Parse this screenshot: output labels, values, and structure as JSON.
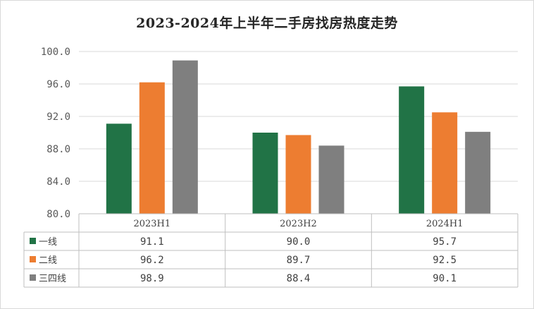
{
  "chart_data": {
    "type": "bar",
    "title": "2023-2024年上半年二手房找房热度走势",
    "categories": [
      "2023H1",
      "2023H2",
      "2024H1"
    ],
    "series": [
      {
        "name": "一线",
        "color": "#217346",
        "values": [
          91.1,
          90.0,
          95.7
        ],
        "labels": [
          "91.1",
          "90.0",
          "95.7"
        ]
      },
      {
        "name": "二线",
        "color": "#ed7d31",
        "values": [
          96.2,
          89.7,
          92.5
        ],
        "labels": [
          "96.2",
          "89.7",
          "92.5"
        ]
      },
      {
        "name": "三四线",
        "color": "#7f7f7f",
        "values": [
          98.9,
          88.4,
          90.1
        ],
        "labels": [
          "98.9",
          "88.4",
          "90.1"
        ]
      }
    ],
    "ylim": [
      80.0,
      100.0
    ],
    "yticks": [
      "80.0",
      "84.0",
      "88.0",
      "92.0",
      "96.0",
      "100.0"
    ],
    "grid": true,
    "legend": "data-table"
  }
}
